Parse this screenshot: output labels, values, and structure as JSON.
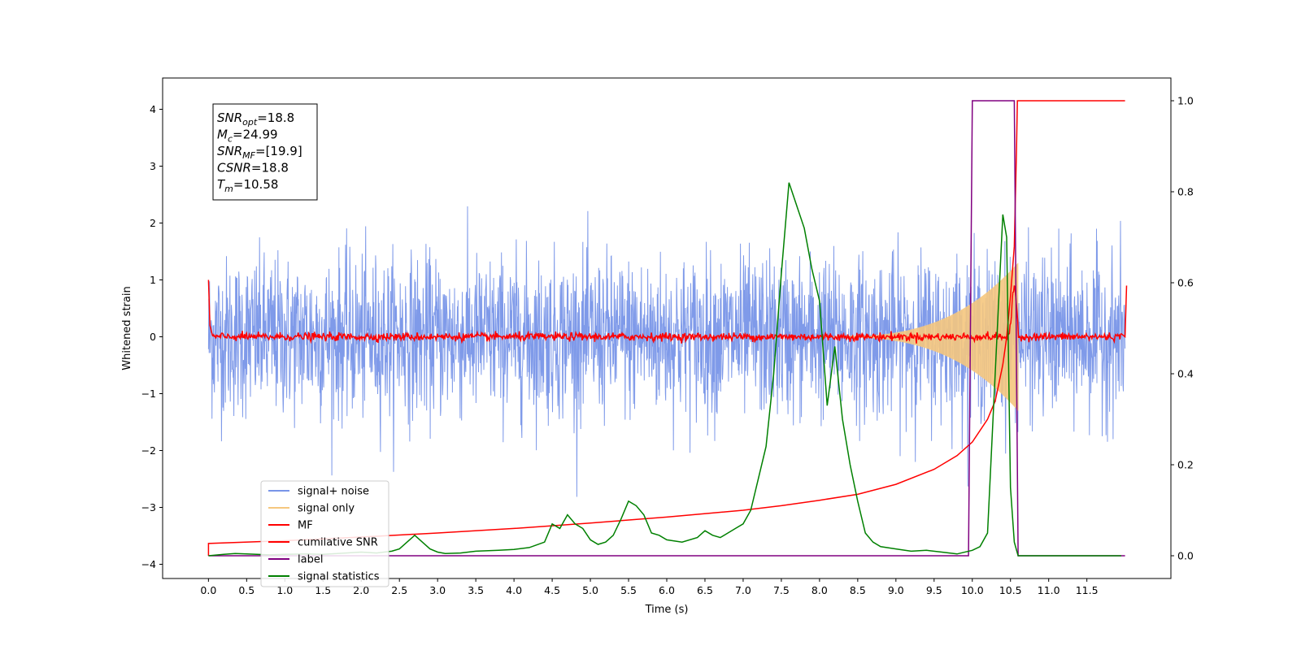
{
  "chart_data": {
    "type": "line",
    "xlabel": "Time (s)",
    "ylabel": "Whitened strain",
    "xlim": [
      -0.6,
      12.6
    ],
    "ylim": [
      -4.25,
      4.55
    ],
    "y2lim": [
      -0.05,
      1.05
    ],
    "xticks": [
      0.0,
      0.5,
      1.0,
      1.5,
      2.0,
      2.5,
      3.0,
      3.5,
      4.0,
      4.5,
      5.0,
      5.5,
      6.0,
      6.5,
      7.0,
      7.5,
      8.0,
      8.5,
      9.0,
      9.5,
      10.0,
      10.5,
      11.0,
      11.5
    ],
    "xtick_labels": [
      "0.0",
      "0.5",
      "1.0",
      "1.5",
      "2.0",
      "2.5",
      "3.0",
      "3.5",
      "4.0",
      "4.5",
      "5.0",
      "5.5",
      "6.0",
      "6.5",
      "7.0",
      "7.5",
      "8.0",
      "8.5",
      "9.0",
      "9.5",
      "10.0",
      "10.5",
      "11.0",
      "11.5"
    ],
    "yticks": [
      -4,
      -3,
      -2,
      -1,
      0,
      1,
      2,
      3,
      4
    ],
    "ytick_labels": [
      "−4",
      "−3",
      "−2",
      "−1",
      "0",
      "1",
      "2",
      "3",
      "4"
    ],
    "y2ticks": [
      0.0,
      0.2,
      0.4,
      0.6,
      0.8,
      1.0
    ],
    "y2tick_labels": [
      "0.0",
      "0.2",
      "0.4",
      "0.6",
      "0.8",
      "1.0"
    ],
    "grid": false,
    "legend_position": "lower-left",
    "annotation": {
      "lines": [
        {
          "sym": "SNR",
          "sub": "opt",
          "value": "=18.8"
        },
        {
          "sym": "M",
          "sub": "c",
          "value": "=24.99"
        },
        {
          "sym": "SNR",
          "sub": "MF",
          "value": "=[19.9]"
        },
        {
          "sym": "CSNR",
          "sub": "",
          "value": "=18.8"
        },
        {
          "sym": "T",
          "sub": "m",
          "value": "=10.58"
        }
      ]
    },
    "series": [
      {
        "name": "signal+ noise",
        "color": "#7895e8",
        "axis": "left",
        "kind": "noise",
        "x_range": [
          0.0,
          12.0
        ],
        "noise_sigma": 0.7,
        "peak_abs": 3.1
      },
      {
        "name": "signal only",
        "color": "#f5c77e",
        "axis": "left",
        "kind": "chirp",
        "x_range": [
          8.0,
          10.6
        ],
        "peak_abs": 1.3
      },
      {
        "name": "MF",
        "color": "#ff0000",
        "axis": "left",
        "kind": "mf",
        "x": [
          0.0,
          0.02,
          0.05,
          12.0,
          12.02
        ],
        "y": [
          1.0,
          0.2,
          0.0,
          0.0,
          0.9
        ]
      },
      {
        "name": "cumilative SNR",
        "color": "#ff0000",
        "axis": "right",
        "x": [
          0.0,
          0.0,
          1.0,
          2.0,
          3.0,
          4.0,
          5.0,
          6.0,
          7.0,
          7.5,
          8.0,
          8.5,
          9.0,
          9.5,
          9.8,
          10.0,
          10.2,
          10.3,
          10.4,
          10.45,
          10.5,
          10.55,
          10.58,
          10.59,
          12.0
        ],
        "y": [
          0.0,
          0.027,
          0.033,
          0.041,
          0.05,
          0.06,
          0.072,
          0.085,
          0.1,
          0.11,
          0.122,
          0.135,
          0.157,
          0.19,
          0.22,
          0.25,
          0.3,
          0.34,
          0.42,
          0.48,
          0.57,
          0.68,
          0.9,
          1.0,
          1.0
        ]
      },
      {
        "name": "label",
        "color": "#800080",
        "axis": "right",
        "x": [
          0.0,
          9.95,
          10.0,
          10.55,
          10.6,
          12.0
        ],
        "y": [
          0.0,
          0.0,
          1.0,
          1.0,
          0.0,
          0.0
        ]
      },
      {
        "name": "signal statistics",
        "color": "#008000",
        "axis": "right",
        "x": [
          0.0,
          0.2,
          0.35,
          0.5,
          0.8,
          1.0,
          1.3,
          1.5,
          1.8,
          2.0,
          2.2,
          2.4,
          2.5,
          2.6,
          2.7,
          2.8,
          2.9,
          3.0,
          3.1,
          3.3,
          3.5,
          3.8,
          4.0,
          4.2,
          4.4,
          4.5,
          4.6,
          4.7,
          4.8,
          4.9,
          5.0,
          5.1,
          5.2,
          5.3,
          5.4,
          5.5,
          5.6,
          5.7,
          5.8,
          5.9,
          6.0,
          6.2,
          6.4,
          6.5,
          6.6,
          6.7,
          6.8,
          6.9,
          7.0,
          7.1,
          7.2,
          7.3,
          7.4,
          7.5,
          7.6,
          7.7,
          7.8,
          7.9,
          8.0,
          8.1,
          8.2,
          8.3,
          8.4,
          8.5,
          8.6,
          8.7,
          8.8,
          9.0,
          9.2,
          9.4,
          9.6,
          9.7,
          9.8,
          10.0,
          10.1,
          10.2,
          10.3,
          10.4,
          10.45,
          10.5,
          10.55,
          10.6,
          10.65,
          10.7,
          11.0,
          11.5,
          11.95
        ],
        "y": [
          0.0,
          0.003,
          0.005,
          0.004,
          0.002,
          0.003,
          0.004,
          0.003,
          0.006,
          0.008,
          0.006,
          0.01,
          0.015,
          0.03,
          0.045,
          0.03,
          0.015,
          0.008,
          0.005,
          0.006,
          0.01,
          0.012,
          0.014,
          0.018,
          0.03,
          0.07,
          0.06,
          0.09,
          0.07,
          0.06,
          0.035,
          0.025,
          0.03,
          0.045,
          0.08,
          0.12,
          0.11,
          0.09,
          0.05,
          0.045,
          0.035,
          0.03,
          0.04,
          0.055,
          0.045,
          0.04,
          0.05,
          0.06,
          0.07,
          0.1,
          0.17,
          0.24,
          0.4,
          0.62,
          0.82,
          0.77,
          0.72,
          0.63,
          0.56,
          0.33,
          0.46,
          0.3,
          0.2,
          0.12,
          0.05,
          0.03,
          0.02,
          0.015,
          0.01,
          0.012,
          0.008,
          0.006,
          0.004,
          0.012,
          0.02,
          0.05,
          0.4,
          0.75,
          0.7,
          0.15,
          0.03,
          0.0,
          0.0,
          0.0,
          0.0,
          0.0,
          0.0
        ]
      }
    ]
  }
}
